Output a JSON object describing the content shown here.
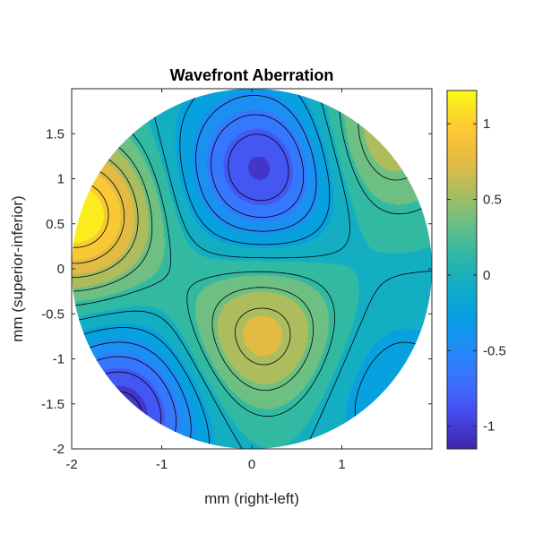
{
  "chart_data": {
    "type": "contour",
    "title": "Wavefront Aberration",
    "xlabel": "mm (right-left)",
    "ylabel": "mm (superior-inferior)",
    "xlim": [
      -2,
      2
    ],
    "ylim": [
      -2,
      2
    ],
    "x_ticks": [
      {
        "value": -2,
        "label": "-2"
      },
      {
        "value": -1,
        "label": "-1"
      },
      {
        "value": 0,
        "label": "0"
      },
      {
        "value": 1,
        "label": "1"
      }
    ],
    "y_ticks": [
      {
        "value": -2,
        "label": "-2"
      },
      {
        "value": -1.5,
        "label": "-1.5"
      },
      {
        "value": -1,
        "label": "-1"
      },
      {
        "value": -0.5,
        "label": "-0.5"
      },
      {
        "value": 0,
        "label": "0"
      },
      {
        "value": 0.5,
        "label": "0.5"
      },
      {
        "value": 1,
        "label": "1"
      },
      {
        "value": 1.5,
        "label": "1.5"
      }
    ],
    "pupil_radius": 2,
    "grid": false,
    "colormap": "parula",
    "contour_level_step": 0.2,
    "colorbar": {
      "location": "right",
      "clim": [
        -1.15,
        1.22
      ],
      "ticks": [
        {
          "value": -1,
          "label": "-1"
        },
        {
          "value": -0.5,
          "label": "-0.5"
        },
        {
          "value": 0,
          "label": "0"
        },
        {
          "value": 0.5,
          "label": "0.5"
        },
        {
          "value": 1,
          "label": "1"
        }
      ]
    },
    "features": [
      {
        "kind": "minimum",
        "x": 0.15,
        "y": 1.12,
        "value": -1.05
      },
      {
        "kind": "maximum",
        "x": 0.12,
        "y": -0.75,
        "value": 0.75
      },
      {
        "kind": "minimum",
        "x": -1.45,
        "y": -1.6,
        "value": -1.1
      },
      {
        "kind": "maximum",
        "x": -1.95,
        "y": 0.6,
        "value": 1.2
      },
      {
        "kind": "maximum",
        "x": 1.4,
        "y": 1.45,
        "value": 0.65
      },
      {
        "kind": "minimum",
        "x": 1.5,
        "y": -1.35,
        "value": -0.35
      }
    ]
  }
}
